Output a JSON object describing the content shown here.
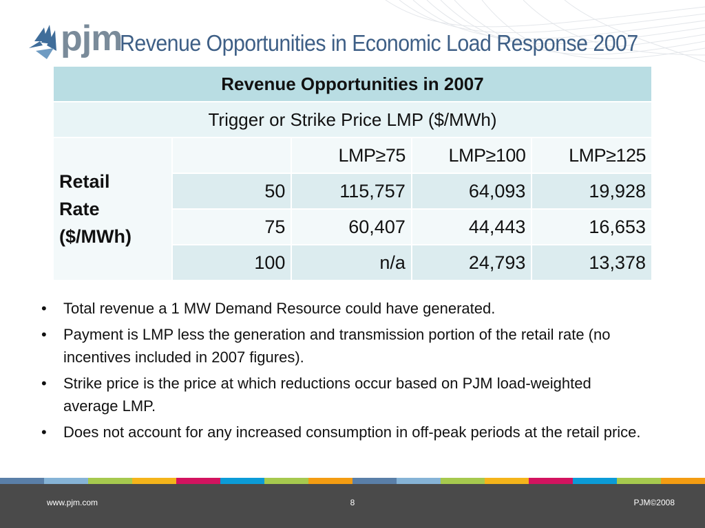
{
  "header": {
    "logo_text": "pjm",
    "title": "Revenue Opportunities in Economic Load Response 2007"
  },
  "table": {
    "title": "Revenue Opportunities in 2007",
    "subtitle": "Trigger or Strike Price LMP ($/MWh)",
    "row_label_lines": [
      "Retail",
      "Rate",
      "($/MWh)"
    ],
    "col_headers": [
      "",
      "LMP≥75",
      "LMP≥100",
      "LMP≥125"
    ],
    "rows": [
      {
        "rate": "50",
        "values": [
          "115,757",
          "64,093",
          "19,928"
        ]
      },
      {
        "rate": "75",
        "values": [
          "60,407",
          "44,443",
          "16,653"
        ]
      },
      {
        "rate": "100",
        "values": [
          "n/a",
          "24,793",
          "13,378"
        ]
      }
    ]
  },
  "bullets": [
    "Total revenue a 1 MW Demand Resource could have generated.",
    "Payment is LMP less the generation and transmission portion of the retail rate (no incentives included in 2007 figures).",
    "Strike price is the price at which reductions occur based on PJM load-weighted average LMP.",
    "Does not account for any increased consumption in off-peak periods at the retail price."
  ],
  "bullet_char": "•",
  "stripe_colors": [
    "#5a7fa8",
    "#86b3d6",
    "#a6c94e",
    "#f4b41a",
    "#d2135f",
    "#0b9bd7",
    "#a6c94e",
    "#f39c12",
    "#5a7fa8",
    "#86b3d6",
    "#a6c94e",
    "#f4b41a",
    "#d2135f",
    "#0b9bd7",
    "#a6c94e",
    "#f39c12"
  ],
  "footer": {
    "url": "www.pjm.com",
    "page": "8",
    "copyright": "PJM©2008"
  },
  "colors": {
    "title": "#3e5f86",
    "table_header_bg": "#b9dde3",
    "footer_bg": "#4a4a4a"
  }
}
